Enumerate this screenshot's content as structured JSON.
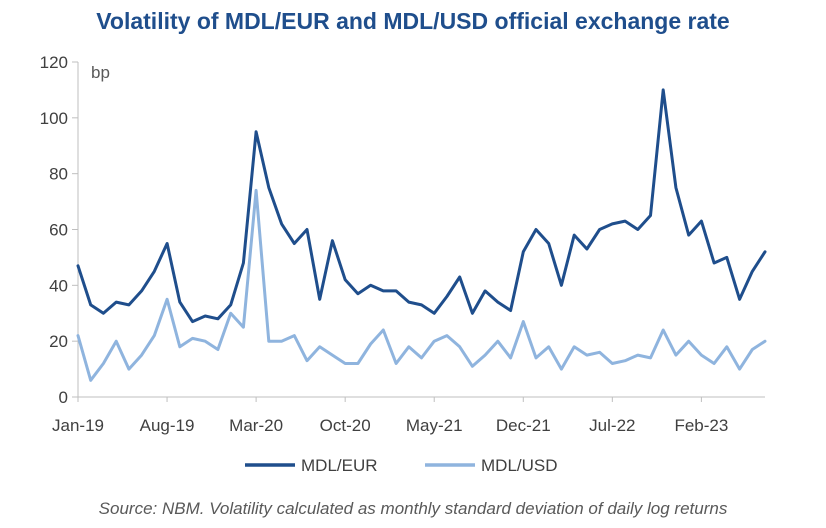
{
  "chart_data": {
    "type": "line",
    "title": "Volatility of MDL/EUR and MDL/USD official exchange rate",
    "unit_label": "bp",
    "xlabel": "",
    "ylabel": "",
    "ylim": [
      0,
      120
    ],
    "yticks": [
      0,
      20,
      40,
      60,
      80,
      100,
      120
    ],
    "x_tick_labels": [
      "Jan-19",
      "Aug-19",
      "Mar-20",
      "Oct-20",
      "May-21",
      "Dec-21",
      "Jul-22",
      "Feb-23"
    ],
    "x": [
      "Jan-19",
      "Feb-19",
      "Mar-19",
      "Apr-19",
      "May-19",
      "Jun-19",
      "Jul-19",
      "Aug-19",
      "Sep-19",
      "Oct-19",
      "Nov-19",
      "Dec-19",
      "Jan-20",
      "Feb-20",
      "Mar-20",
      "Apr-20",
      "May-20",
      "Jun-20",
      "Jul-20",
      "Aug-20",
      "Sep-20",
      "Oct-20",
      "Nov-20",
      "Dec-20",
      "Jan-21",
      "Feb-21",
      "Mar-21",
      "Apr-21",
      "May-21",
      "Jun-21",
      "Jul-21",
      "Aug-21",
      "Sep-21",
      "Oct-21",
      "Nov-21",
      "Dec-21",
      "Jan-22",
      "Feb-22",
      "Mar-22",
      "Apr-22",
      "May-22",
      "Jun-22",
      "Jul-22",
      "Aug-22",
      "Sep-22",
      "Oct-22",
      "Nov-22",
      "Dec-22",
      "Jan-23",
      "Feb-23",
      "Mar-23",
      "Apr-23",
      "May-23",
      "Jun-23",
      "Jul-23"
    ],
    "grid": false,
    "legend_position": "bottom",
    "series": [
      {
        "name": "MDL/EUR",
        "color": "#1f4e8c",
        "values": [
          47,
          33,
          30,
          34,
          33,
          38,
          45,
          55,
          34,
          27,
          29,
          28,
          33,
          48,
          95,
          75,
          62,
          55,
          60,
          35,
          56,
          42,
          37,
          40,
          38,
          38,
          34,
          33,
          30,
          36,
          43,
          30,
          38,
          34,
          31,
          52,
          60,
          55,
          40,
          58,
          53,
          60,
          62,
          63,
          60,
          65,
          110,
          75,
          58,
          63,
          48,
          50,
          35,
          45,
          52
        ]
      },
      {
        "name": "MDL/USD",
        "color": "#8fb4de",
        "values": [
          22,
          6,
          12,
          20,
          10,
          15,
          22,
          35,
          18,
          21,
          20,
          17,
          30,
          25,
          74,
          20,
          20,
          22,
          13,
          18,
          15,
          12,
          12,
          19,
          24,
          12,
          18,
          14,
          20,
          22,
          18,
          11,
          15,
          20,
          14,
          27,
          14,
          18,
          10,
          18,
          15,
          16,
          12,
          13,
          15,
          14,
          24,
          15,
          20,
          15,
          12,
          18,
          10,
          17,
          20
        ]
      }
    ]
  },
  "source": "Source: NBM. Volatility calculated as monthly standard deviation of daily log returns"
}
